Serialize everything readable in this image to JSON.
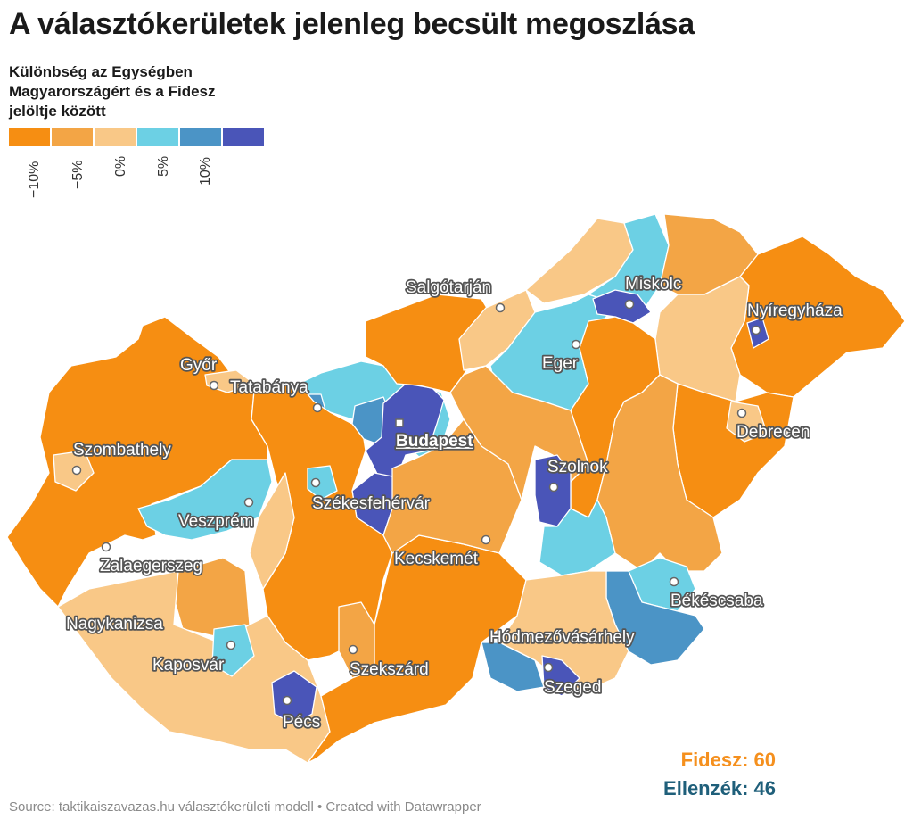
{
  "title": "A választókerületek jelenleg becsült megoszlása",
  "legend": {
    "title": "Különbség az Egységben Magyarországért és a Fidesz jelöltje között",
    "colors": [
      "#f68e12",
      "#f3a545",
      "#f9c887",
      "#6cd0e4",
      "#4b94c6",
      "#4a55b8"
    ],
    "ticks": [
      "−10%",
      "−5%",
      "0%",
      "5%",
      "10%"
    ]
  },
  "cities": {
    "salgotarjan": "Salgótarján",
    "miskolc": "Miskolc",
    "nyiregyhaza": "Nyíregyháza",
    "gyor": "Győr",
    "tatabanya": "Tatabánya",
    "eger": "Eger",
    "budapest": "Budapest",
    "debrecen": "Debrecen",
    "szombathely": "Szombathely",
    "szolnok": "Szolnok",
    "szekesfehervar": "Székesfehérvár",
    "veszprem": "Veszprém",
    "kecskemet": "Kecskemét",
    "zalaegerszeg": "Zalaegerszeg",
    "bekescsaba": "Békéscsaba",
    "nagykanizsa": "Nagykanizsa",
    "hodmezovasarhely": "Hódmezővásárhely",
    "kaposvar": "Kaposvár",
    "szekszard": "Szekszárd",
    "szeged": "Szeged",
    "pecs": "Pécs"
  },
  "totals": {
    "fidesz": "Fidesz: 60",
    "ellenzek": "Ellenzék: 46"
  },
  "source": "Source: taktikaiszavazas.hu választókerületi modell • Created with Datawrapper"
}
